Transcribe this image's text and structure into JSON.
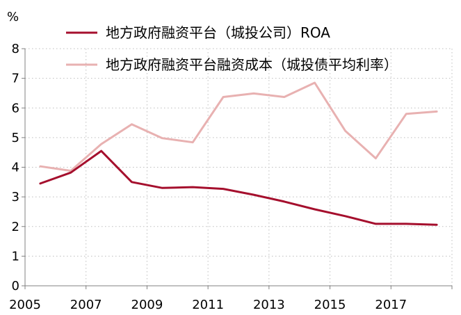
{
  "chart_data": {
    "type": "line",
    "unit": "%",
    "ylim": [
      0,
      8
    ],
    "y_ticks": [
      0,
      1,
      2,
      3,
      4,
      5,
      6,
      7,
      8
    ],
    "x_tick_labels": [
      "2005",
      "2007",
      "2009",
      "2011",
      "2013",
      "2015",
      "2017"
    ],
    "x": [
      2005,
      2006,
      2007,
      2008,
      2009,
      2010,
      2011,
      2012,
      2013,
      2014,
      2015,
      2016,
      2017,
      2018
    ],
    "grid": true,
    "legend_position": "top",
    "series": [
      {
        "name": "地方政府融资平台（城投公司）ROA",
        "color": "#a50f2d",
        "values": [
          3.45,
          3.82,
          4.55,
          3.5,
          3.3,
          3.33,
          3.27,
          3.07,
          2.84,
          2.58,
          2.35,
          2.09,
          2.09,
          2.06
        ]
      },
      {
        "name": "地方政府融资平台融资成本（城投债平均利率）",
        "color": "#e8b1b1",
        "values": [
          4.03,
          3.88,
          4.78,
          5.45,
          4.98,
          4.84,
          6.37,
          6.49,
          6.37,
          6.85,
          5.23,
          4.3,
          5.8,
          5.88
        ]
      }
    ]
  }
}
